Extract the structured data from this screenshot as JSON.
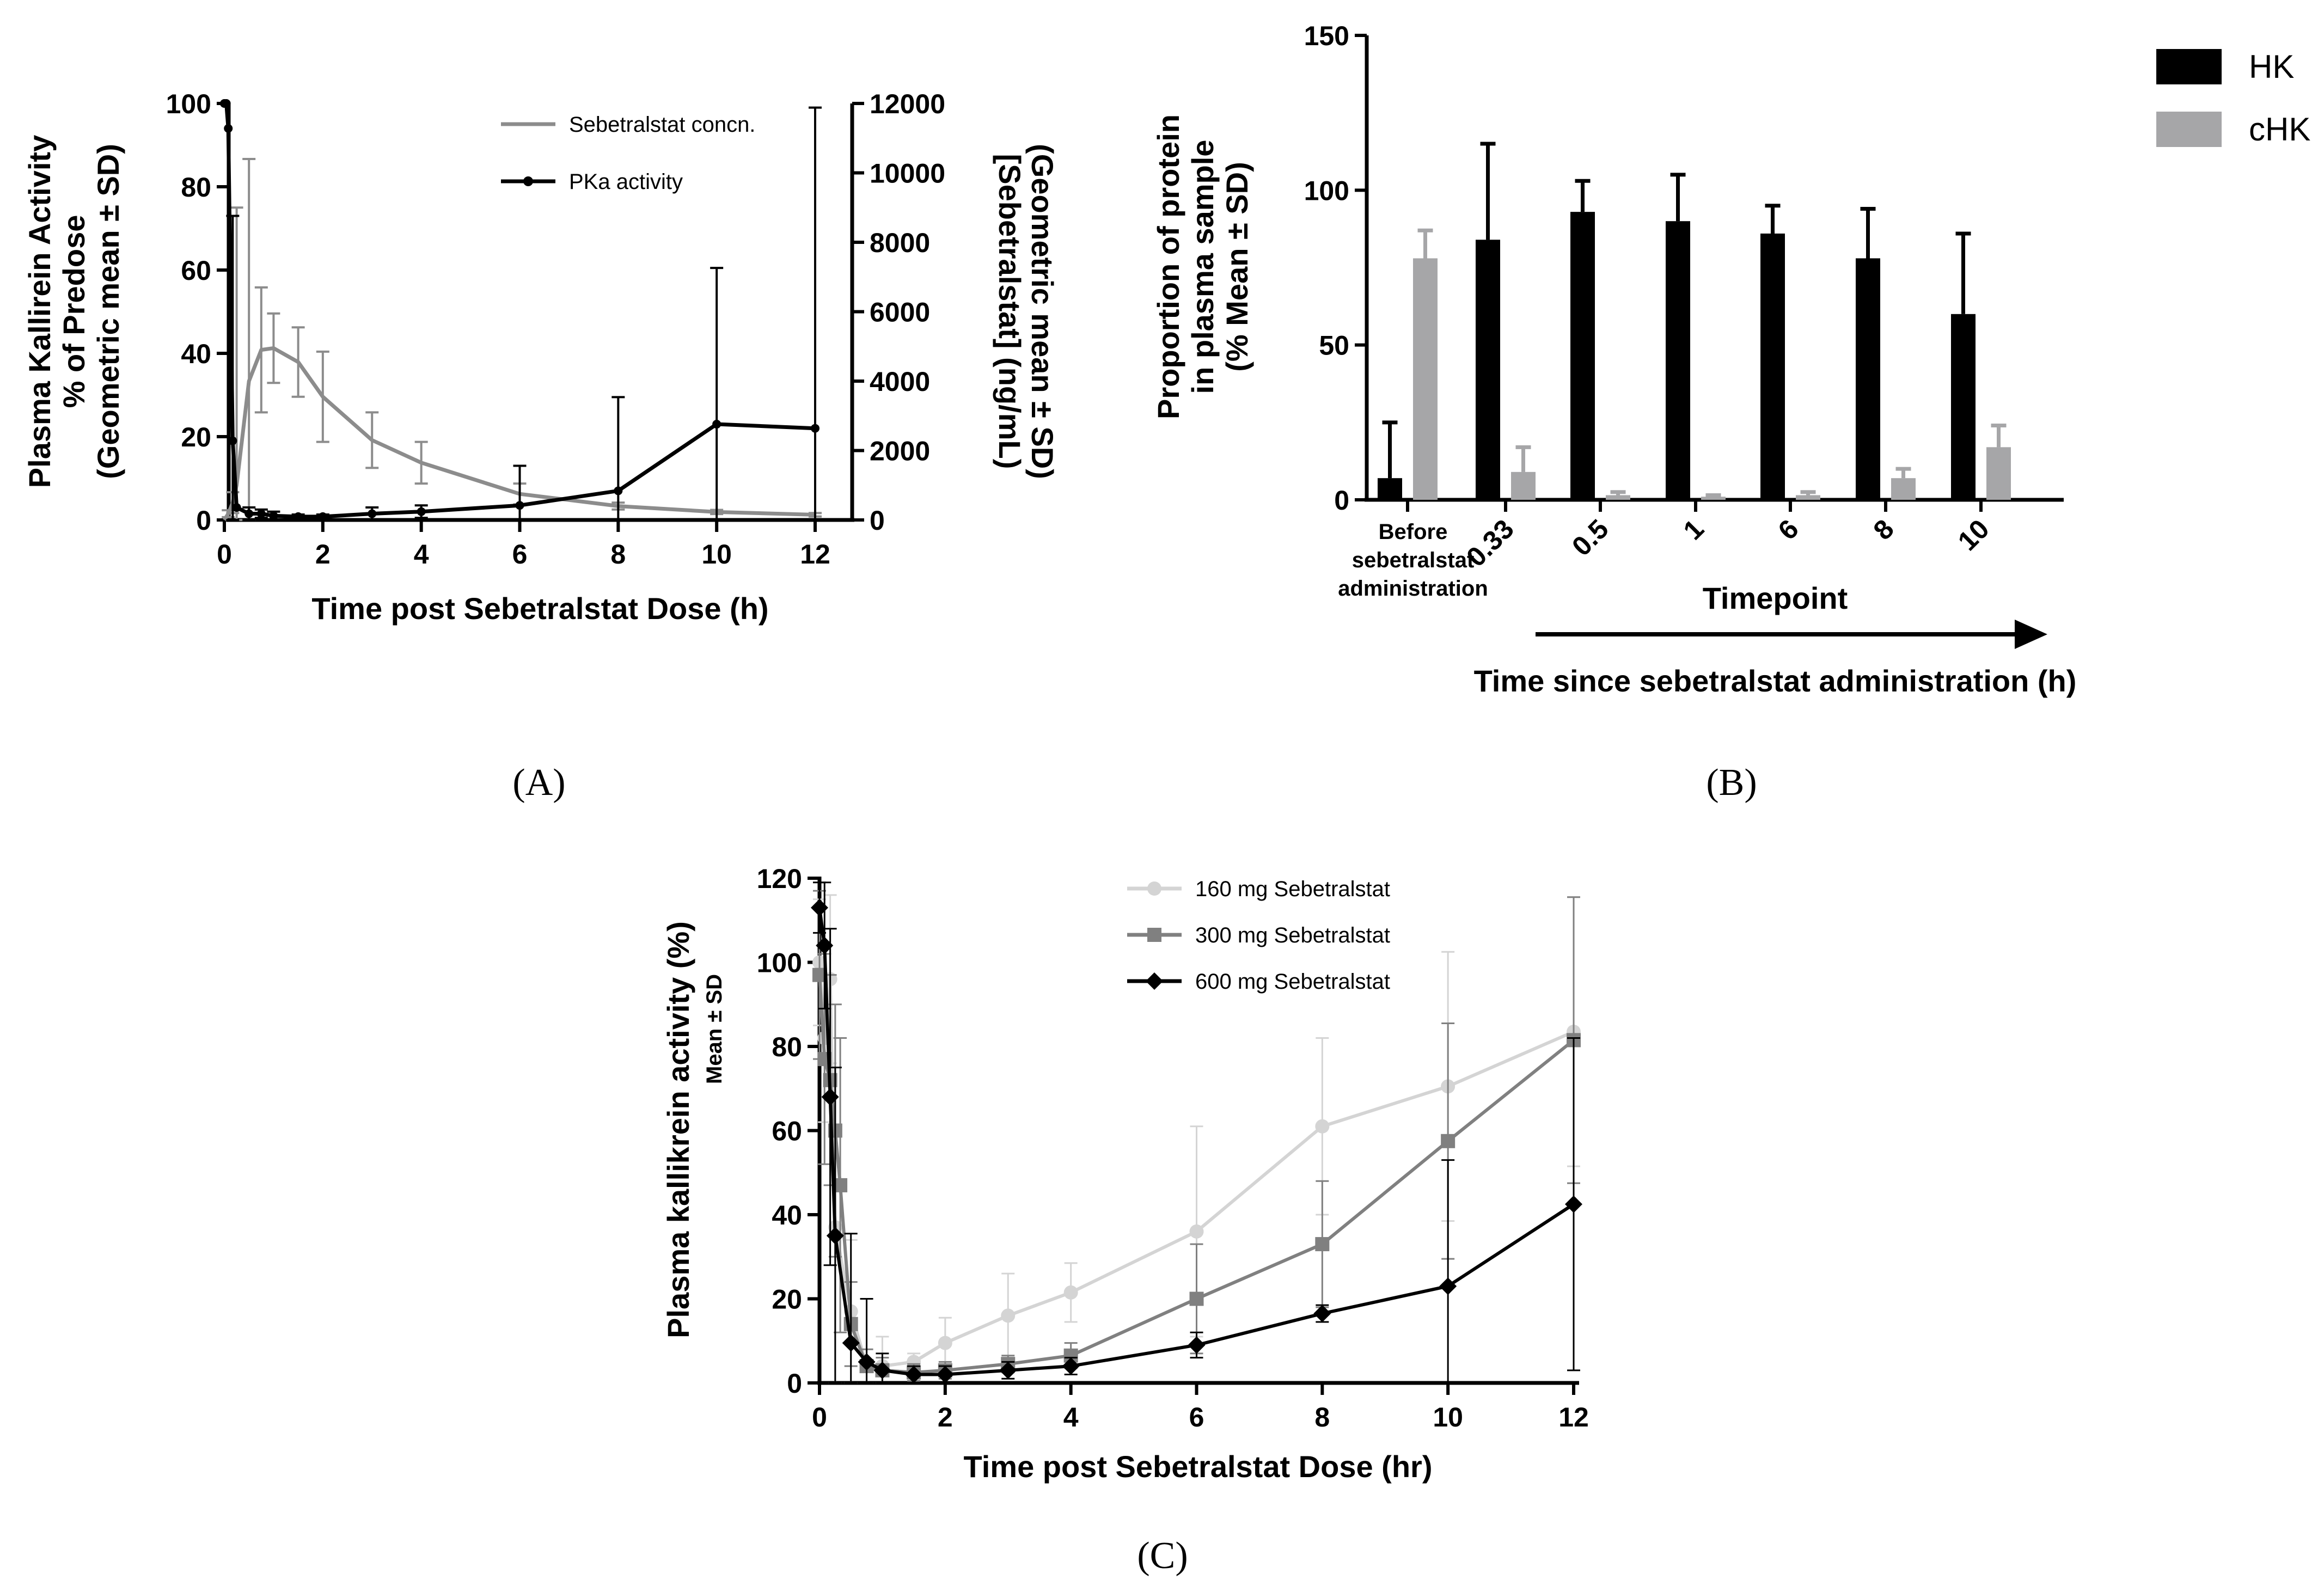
{
  "chart_data": [
    {
      "id": "A",
      "type": "line",
      "panel_label": "(A)",
      "xlabel": "Time post Sebetralstat Dose (h)",
      "ylabel": [
        "Plasma Kallirein Activity",
        "% of Predose",
        "(Geometric mean ± SD)"
      ],
      "y2label": [
        "[Sebetralstat] (ng/mL)",
        "(Geometric mean ± SD)"
      ],
      "xlim": [
        0,
        13
      ],
      "ylim": [
        0,
        100
      ],
      "y2lim": [
        0,
        12000
      ],
      "xticks": [
        "0",
        "2",
        "4",
        "6",
        "8",
        "10",
        "12"
      ],
      "yticks": [
        "0",
        "20",
        "40",
        "60",
        "80",
        "100"
      ],
      "y2ticks": [
        "0",
        "2000",
        "4000",
        "6000",
        "8000",
        "10000",
        "12000"
      ],
      "series": [
        {
          "name": "Sebetralstat concn.",
          "color": "#8c8c8c",
          "axis": "right",
          "x": [
            0,
            0.08,
            0.17,
            0.25,
            0.5,
            0.75,
            1,
            1.5,
            2,
            3,
            4,
            6,
            8,
            10,
            12
          ],
          "y": [
            0,
            180,
            500,
            1000,
            4000,
            4900,
            4950,
            4550,
            3550,
            2300,
            1650,
            750,
            400,
            230,
            150
          ],
          "sd": [
            0,
            100,
            300,
            8000,
            6400,
            1800,
            1000,
            1000,
            1300,
            800,
            600,
            300,
            100,
            60,
            50
          ]
        },
        {
          "name": "PKa activity",
          "color": "#000000",
          "axis": "left",
          "x": [
            0,
            0.04,
            0.08,
            0.17,
            0.25,
            0.5,
            0.75,
            1,
            1.5,
            2,
            3,
            4,
            6,
            8,
            10,
            12
          ],
          "y": [
            100,
            100,
            94,
            19,
            3,
            1.5,
            1.5,
            1,
            0.8,
            0.8,
            1.5,
            2,
            3.5,
            7,
            23,
            22
          ],
          "sd": [
            0,
            0,
            0,
            54,
            0,
            1.5,
            1,
            1,
            0.5,
            0.5,
            1.5,
            1.5,
            9.5,
            22.5,
            37.5,
            77
          ]
        }
      ]
    },
    {
      "id": "B",
      "type": "bar",
      "panel_label": "(B)",
      "xlabel": "Timepoint",
      "ylabel": [
        "Proportion of protein",
        "in plasma sample",
        "(% Mean ± SD)"
      ],
      "ylim": [
        0,
        150
      ],
      "yticks": [
        "0",
        "50",
        "100",
        "150"
      ],
      "categories": [
        "Before sebetralstat administration",
        "0.33",
        "0.5",
        "1",
        "6",
        "8",
        "10"
      ],
      "first_category_lines": [
        "Before",
        "sebetralstat",
        "administration"
      ],
      "arrow_label": "Time since sebetralstat administration (h)",
      "series": [
        {
          "name": "HK",
          "color": "#000000",
          "values": [
            7,
            84,
            93,
            90,
            86,
            78,
            60
          ],
          "sd": [
            18,
            31,
            10,
            15,
            9,
            16,
            26
          ]
        },
        {
          "name": "cHK",
          "color": "#a6a6a8",
          "values": [
            78,
            9,
            1.5,
            1,
            1.5,
            7,
            17
          ],
          "sd": [
            9,
            8,
            1,
            0.5,
            1,
            3,
            7
          ]
        }
      ]
    },
    {
      "id": "C",
      "type": "line",
      "panel_label": "(C)",
      "xlabel": "Time post Sebetralstat Dose (hr)",
      "ylabel": "Plasma kallikrein activity (%)",
      "ylabel_sub": "Mean ± SD",
      "xlim": [
        0,
        12
      ],
      "ylim": [
        0,
        120
      ],
      "xticks": [
        "0",
        "2",
        "4",
        "6",
        "8",
        "10",
        "12"
      ],
      "yticks": [
        "0",
        "20",
        "40",
        "60",
        "80",
        "100",
        "120"
      ],
      "series": [
        {
          "name": "160 mg Sebetralstat",
          "color": "#d4d4d4",
          "marker": "circle",
          "x": [
            0,
            0.08,
            0.17,
            0.25,
            0.5,
            0.75,
            1,
            1.5,
            2,
            3,
            4,
            6,
            8,
            10,
            12
          ],
          "y": [
            100,
            82,
            96,
            37,
            17,
            4,
            4,
            5,
            9.5,
            16,
            21.5,
            36,
            61,
            70.5,
            83.5
          ],
          "sd": [
            15,
            20,
            20,
            45,
            17,
            4,
            7,
            2,
            6,
            10,
            7,
            25,
            21,
            32,
            32
          ]
        },
        {
          "name": "300 mg Sebetralstat",
          "color": "#808080",
          "marker": "square",
          "x": [
            0,
            0.08,
            0.17,
            0.25,
            0.33,
            0.5,
            0.75,
            1,
            1.5,
            2,
            3,
            4,
            6,
            8,
            10,
            12
          ],
          "y": [
            97,
            77,
            72,
            60,
            47,
            14,
            4,
            3,
            2.5,
            3,
            4.5,
            6.5,
            20,
            33,
            57.5,
            81.5
          ],
          "sd": [
            20,
            25,
            25,
            30,
            35,
            10,
            4,
            3,
            2,
            2,
            2,
            3,
            13,
            15,
            28,
            34
          ]
        },
        {
          "name": "600 mg Sebetralstat",
          "color": "#000000",
          "marker": "diamond",
          "x": [
            0,
            0.08,
            0.17,
            0.25,
            0.5,
            0.75,
            1,
            1.5,
            2,
            3,
            4,
            6,
            8,
            10,
            12
          ],
          "y": [
            113,
            104,
            68,
            35,
            9.5,
            5,
            3,
            2,
            2,
            3,
            4,
            9,
            16.5,
            23,
            42.5
          ],
          "sd": [
            6,
            15,
            40,
            40,
            26,
            15,
            4,
            2,
            2,
            2,
            2,
            3,
            2,
            30,
            39.5
          ]
        }
      ]
    }
  ]
}
